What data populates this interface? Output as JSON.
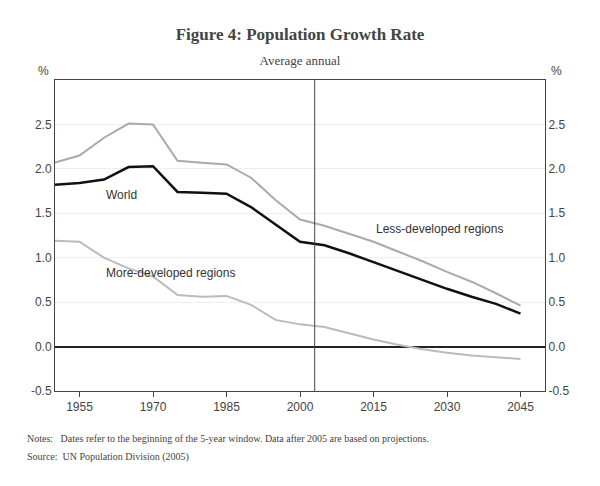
{
  "chart_data": {
    "type": "line",
    "title": "Figure 4: Population Growth Rate",
    "subtitle": "Average annual",
    "notes": "Notes:   Dates refer to the beginning of the 5-year window. Data after 2005 are based on projections.",
    "source": "Source:  UN Population Division (2005)",
    "ylabel": "%",
    "y2label": "%",
    "x": [
      1950,
      1955,
      1960,
      1965,
      1970,
      1975,
      1980,
      1985,
      1990,
      1995,
      2000,
      2005,
      2010,
      2015,
      2020,
      2025,
      2030,
      2035,
      2040,
      2045
    ],
    "series": [
      {
        "name": "Less-developed regions",
        "color": "#aaaaaa",
        "values": [
          2.07,
          2.15,
          2.35,
          2.51,
          2.5,
          2.09,
          2.07,
          2.05,
          1.9,
          1.65,
          1.43,
          1.36,
          1.27,
          1.18,
          1.07,
          0.96,
          0.84,
          0.73,
          0.6,
          0.46
        ]
      },
      {
        "name": "More-developed regions",
        "color": "#bbbbbb",
        "values": [
          1.19,
          1.18,
          1.0,
          0.88,
          0.79,
          0.58,
          0.56,
          0.57,
          0.47,
          0.3,
          0.25,
          0.22,
          0.15,
          0.08,
          0.02,
          -0.03,
          -0.07,
          -0.1,
          -0.12,
          -0.14
        ]
      },
      {
        "name": "World",
        "color": "#111111",
        "values": [
          1.82,
          1.84,
          1.88,
          2.02,
          2.03,
          1.74,
          1.73,
          1.72,
          1.57,
          1.37,
          1.18,
          1.14,
          1.05,
          0.95,
          0.85,
          0.75,
          0.65,
          0.56,
          0.48,
          0.37
        ]
      }
    ],
    "xlim": [
      1950,
      2050
    ],
    "xticks": [
      1955,
      1970,
      1985,
      2000,
      2015,
      2030,
      2045
    ],
    "ylim": [
      -0.5,
      3.0
    ],
    "yticks": [
      -0.5,
      {
        "value": 0.0,
        "label": "0.0"
      },
      0.5,
      {
        "value": 1.0,
        "label": "1.0"
      },
      1.5,
      {
        "value": 2.0,
        "label": "2.0"
      },
      2.5
    ],
    "y2lim": [
      -0.5,
      3.0
    ],
    "y2ticks": [
      -0.5,
      {
        "value": 0.0,
        "label": "0.0"
      },
      0.5,
      {
        "value": 1.0,
        "label": "1.0"
      },
      1.5,
      {
        "value": 2.0,
        "label": "2.0"
      },
      2.5
    ],
    "vline": 2003,
    "grid": "y"
  }
}
